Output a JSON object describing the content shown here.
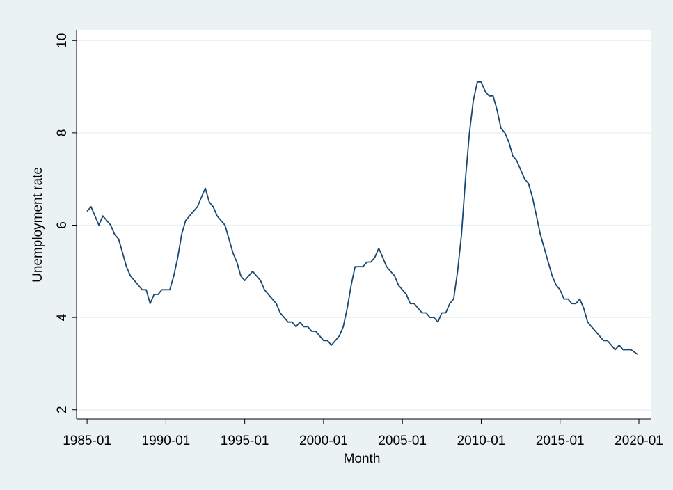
{
  "chart_data": {
    "type": "line",
    "x_label": "Month",
    "y_label": "Unemployment rate",
    "x": [
      "1985-01",
      "1985-04",
      "1985-07",
      "1985-10",
      "1986-01",
      "1986-04",
      "1986-07",
      "1986-10",
      "1987-01",
      "1987-04",
      "1987-07",
      "1987-10",
      "1988-01",
      "1988-04",
      "1988-07",
      "1988-10",
      "1989-01",
      "1989-04",
      "1989-07",
      "1989-10",
      "1990-01",
      "1990-04",
      "1990-07",
      "1990-10",
      "1991-01",
      "1991-04",
      "1991-07",
      "1991-10",
      "1992-01",
      "1992-04",
      "1992-07",
      "1992-10",
      "1993-01",
      "1993-04",
      "1993-07",
      "1993-10",
      "1994-01",
      "1994-04",
      "1994-07",
      "1994-10",
      "1995-01",
      "1995-04",
      "1995-07",
      "1995-10",
      "1996-01",
      "1996-04",
      "1996-07",
      "1996-10",
      "1997-01",
      "1997-04",
      "1997-07",
      "1997-10",
      "1998-01",
      "1998-04",
      "1998-07",
      "1998-10",
      "1999-01",
      "1999-04",
      "1999-07",
      "1999-10",
      "2000-01",
      "2000-04",
      "2000-07",
      "2000-10",
      "2001-01",
      "2001-04",
      "2001-07",
      "2001-10",
      "2002-01",
      "2002-04",
      "2002-07",
      "2002-10",
      "2003-01",
      "2003-04",
      "2003-07",
      "2003-10",
      "2004-01",
      "2004-04",
      "2004-07",
      "2004-10",
      "2005-01",
      "2005-04",
      "2005-07",
      "2005-10",
      "2006-01",
      "2006-04",
      "2006-07",
      "2006-10",
      "2007-01",
      "2007-04",
      "2007-07",
      "2007-10",
      "2008-01",
      "2008-04",
      "2008-07",
      "2008-10",
      "2009-01",
      "2009-04",
      "2009-07",
      "2009-10",
      "2010-01",
      "2010-04",
      "2010-07",
      "2010-10",
      "2011-01",
      "2011-04",
      "2011-07",
      "2011-10",
      "2012-01",
      "2012-04",
      "2012-07",
      "2012-10",
      "2013-01",
      "2013-04",
      "2013-07",
      "2013-10",
      "2014-01",
      "2014-04",
      "2014-07",
      "2014-10",
      "2015-01",
      "2015-04",
      "2015-07",
      "2015-10",
      "2016-01",
      "2016-04",
      "2016-07",
      "2016-10",
      "2017-01",
      "2017-04",
      "2017-07",
      "2017-10",
      "2018-01",
      "2018-04",
      "2018-07",
      "2018-10",
      "2019-01",
      "2019-04",
      "2019-07",
      "2019-12"
    ],
    "series": [
      {
        "name": "Unemployment rate",
        "color": "#1a476f",
        "values": [
          6.3,
          6.4,
          6.2,
          6.0,
          6.2,
          6.1,
          6.0,
          5.8,
          5.7,
          5.4,
          5.1,
          4.9,
          4.8,
          4.7,
          4.6,
          4.6,
          4.3,
          4.5,
          4.5,
          4.6,
          4.6,
          4.6,
          4.9,
          5.3,
          5.8,
          6.1,
          6.2,
          6.3,
          6.4,
          6.6,
          6.8,
          6.5,
          6.4,
          6.2,
          6.1,
          6.0,
          5.7,
          5.4,
          5.2,
          4.9,
          4.8,
          4.9,
          5.0,
          4.9,
          4.8,
          4.6,
          4.5,
          4.4,
          4.3,
          4.1,
          4.0,
          3.9,
          3.9,
          3.8,
          3.9,
          3.8,
          3.8,
          3.7,
          3.7,
          3.6,
          3.5,
          3.5,
          3.4,
          3.5,
          3.6,
          3.8,
          4.2,
          4.7,
          5.1,
          5.1,
          5.1,
          5.2,
          5.2,
          5.3,
          5.5,
          5.3,
          5.1,
          5.0,
          4.9,
          4.7,
          4.6,
          4.5,
          4.3,
          4.3,
          4.2,
          4.1,
          4.1,
          4.0,
          4.0,
          3.9,
          4.1,
          4.1,
          4.3,
          4.4,
          5.0,
          5.8,
          7.0,
          8.0,
          8.7,
          9.1,
          9.1,
          8.9,
          8.8,
          8.8,
          8.5,
          8.1,
          8.0,
          7.8,
          7.5,
          7.4,
          7.2,
          7.0,
          6.9,
          6.6,
          6.2,
          5.8,
          5.5,
          5.2,
          4.9,
          4.7,
          4.6,
          4.4,
          4.4,
          4.3,
          4.3,
          4.4,
          4.2,
          3.9,
          3.8,
          3.7,
          3.6,
          3.5,
          3.5,
          3.4,
          3.3,
          3.4,
          3.3,
          3.3,
          3.3,
          3.2
        ]
      }
    ],
    "xlim": [
      "1984-05",
      "2020-10"
    ],
    "xticks": [
      "1985-01",
      "1990-01",
      "1995-01",
      "2000-01",
      "2005-01",
      "2010-01",
      "2015-01",
      "2020-01"
    ],
    "ylim": [
      1.8,
      10.23
    ],
    "yticks": [
      2,
      4,
      6,
      8,
      10
    ],
    "grid": true
  }
}
